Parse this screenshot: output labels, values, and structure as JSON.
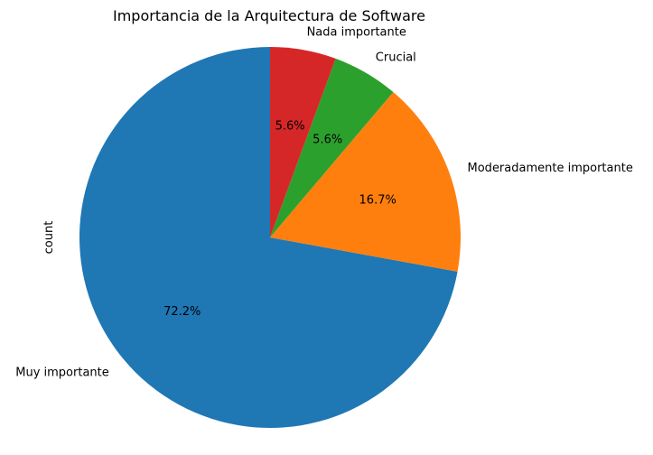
{
  "chart_data": {
    "type": "pie",
    "title": "Importancia de la Arquitectura de Software",
    "ylabel": "count",
    "start_angle_deg": 90,
    "direction": "counterclockwise",
    "slices": [
      {
        "label": "Muy importante",
        "value": 72.2,
        "pct_label": "72.2%",
        "color": "#1f77b4"
      },
      {
        "label": "Moderadamente importante",
        "value": 16.7,
        "pct_label": "16.7%",
        "color": "#ff7f0e"
      },
      {
        "label": "Crucial",
        "value": 5.6,
        "pct_label": "5.6%",
        "color": "#2ca02c"
      },
      {
        "label": "Nada importante",
        "value": 5.6,
        "pct_label": "5.6%",
        "color": "#d62728"
      }
    ]
  }
}
